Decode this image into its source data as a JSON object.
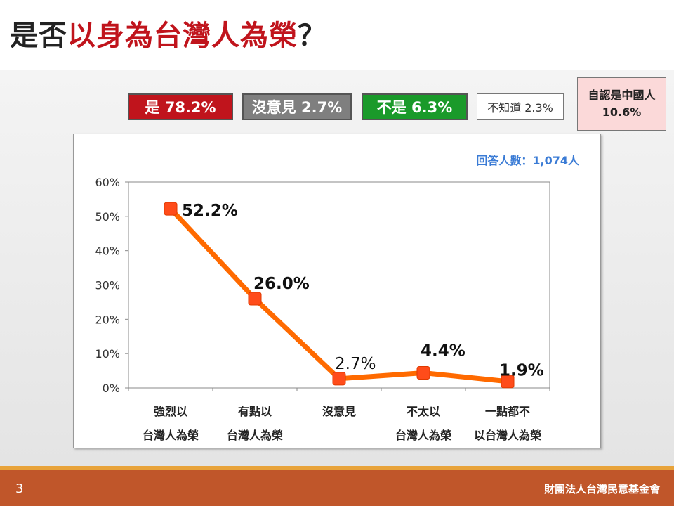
{
  "header": {
    "title_prefix": "是否",
    "title_highlight": "以身為台灣人為榮",
    "title_suffix": "？"
  },
  "summary": {
    "yes": "是 78.2%",
    "no_opinion": "沒意見 2.7%",
    "no": "不是 6.3%",
    "dont_know": "不知道 2.3%",
    "chinese_label": "自認是中國人",
    "chinese_value": "10.6%"
  },
  "colors": {
    "yes": "#c0141c",
    "no_opinion": "#7f7f7f",
    "no": "#1a9a2a",
    "line": "#ff6a00",
    "marker": "#ff4c1a"
  },
  "chart_data": {
    "type": "line",
    "respondents": "回答人數：1,074人",
    "categories": [
      [
        "強烈以",
        "台灣人為榮"
      ],
      [
        "有點以",
        "台灣人為榮"
      ],
      [
        "沒意見"
      ],
      [
        "不太以",
        "台灣人為榮"
      ],
      [
        "一點都不",
        "以台灣人為榮"
      ]
    ],
    "values": [
      52.2,
      26.0,
      2.7,
      4.4,
      1.9
    ],
    "data_labels": [
      "52.2%",
      "26.0%",
      "2.7%",
      "4.4%",
      "1.9%"
    ],
    "label_bold": [
      true,
      true,
      false,
      true,
      true
    ],
    "ylim": [
      0,
      60
    ],
    "yticks": [
      "0%",
      "10%",
      "20%",
      "30%",
      "40%",
      "50%",
      "60%"
    ],
    "grid": false,
    "legend": "none"
  },
  "footer": {
    "page_number": "3",
    "organization": "財團法人台灣民意基金會"
  }
}
